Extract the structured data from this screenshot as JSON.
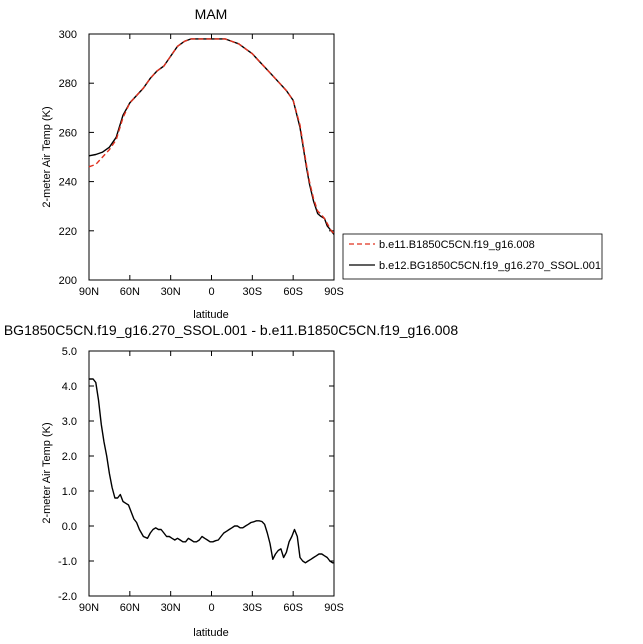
{
  "chart_data": [
    {
      "type": "line",
      "title": "MAM",
      "xlabel": "latitude",
      "ylabel": "2-meter Air Temp (K)",
      "xlim": [
        90,
        -90
      ],
      "ylim": [
        200,
        300
      ],
      "xticks": [
        90,
        60,
        30,
        0,
        -30,
        -60,
        -90
      ],
      "xticklabels": [
        "90N",
        "60N",
        "30N",
        "0",
        "30S",
        "60S",
        "90S"
      ],
      "yticks": [
        200,
        220,
        240,
        260,
        280,
        300
      ],
      "yticklabels": [
        "200",
        "220",
        "240",
        "260",
        "280",
        "300"
      ],
      "legend_position": "right",
      "series": [
        {
          "name": "b.e11.B1850C5CN.f19_g16.008",
          "color": "#e0301e",
          "dash": "dashed",
          "x": [
            90,
            85,
            80,
            75,
            70,
            65,
            60,
            55,
            50,
            45,
            40,
            35,
            30,
            25,
            20,
            15,
            10,
            5,
            0,
            -5,
            -10,
            -15,
            -20,
            -25,
            -30,
            -35,
            -40,
            -45,
            -50,
            -55,
            -60,
            -65,
            -70,
            -72,
            -75,
            -78,
            -80,
            -83,
            -85,
            -88,
            -90
          ],
          "y": [
            246,
            247,
            250,
            253,
            257,
            266,
            272,
            275,
            278,
            282,
            285,
            287,
            291,
            295,
            297,
            298,
            298,
            298,
            298,
            298,
            298,
            297,
            296,
            294,
            292,
            289,
            286,
            283,
            280,
            277,
            273,
            263,
            246,
            240,
            233,
            228,
            227,
            225,
            223,
            220,
            219
          ]
        },
        {
          "name": "b.e12.BG1850C5CN.f19_g16.270_SSOL.001",
          "color": "#000000",
          "dash": "solid",
          "x": [
            90,
            85,
            80,
            75,
            70,
            65,
            60,
            55,
            50,
            45,
            40,
            35,
            30,
            25,
            20,
            15,
            10,
            5,
            0,
            -5,
            -10,
            -15,
            -20,
            -25,
            -30,
            -35,
            -40,
            -45,
            -50,
            -55,
            -60,
            -65,
            -70,
            -72,
            -75,
            -78,
            -80,
            -83,
            -85,
            -88,
            -90
          ],
          "y": [
            250.5,
            251,
            252,
            254,
            258,
            267,
            272,
            275,
            278,
            282,
            285,
            287,
            291,
            295,
            297,
            298,
            298,
            298,
            298,
            298,
            298,
            297,
            296,
            294,
            292,
            289,
            286,
            283,
            280,
            277,
            273,
            262,
            245,
            239,
            232,
            227,
            226,
            225,
            222,
            220,
            218.5
          ]
        }
      ]
    },
    {
      "type": "line",
      "title": "BG1850C5CN.f19_g16.270_SSOL.001 - b.e11.B1850C5CN.f19_g16.008",
      "xlabel": "latitude",
      "ylabel": "2-meter Air Temp (K)",
      "xlim": [
        90,
        -90
      ],
      "ylim": [
        -2.0,
        5.0
      ],
      "xticks": [
        90,
        60,
        30,
        0,
        -30,
        -60,
        -90
      ],
      "xticklabels": [
        "90N",
        "60N",
        "30N",
        "0",
        "30S",
        "60S",
        "90S"
      ],
      "yticks": [
        -2,
        -1,
        0,
        1,
        2,
        3,
        4,
        5
      ],
      "yticklabels": [
        "-2.0",
        "-1.0",
        "0.0",
        "1.0",
        "2.0",
        "3.0",
        "4.0",
        "5.0"
      ],
      "series": [
        {
          "color": "#000000",
          "dash": "solid",
          "x": [
            90,
            87,
            85,
            83,
            81,
            79,
            77,
            75,
            73,
            71,
            69,
            67,
            65,
            63,
            61,
            59,
            57,
            55,
            53,
            50,
            47,
            45,
            43,
            41,
            39,
            37,
            35,
            33,
            31,
            29,
            27,
            25,
            23,
            21,
            19,
            17,
            15,
            13,
            11,
            9,
            7,
            5,
            3,
            1,
            -1,
            -3,
            -5,
            -7,
            -9,
            -11,
            -13,
            -15,
            -17,
            -19,
            -21,
            -23,
            -25,
            -27,
            -29,
            -31,
            -33,
            -35,
            -37,
            -39,
            -41,
            -43,
            -45,
            -47,
            -49,
            -51,
            -53,
            -55,
            -57,
            -59,
            -61,
            -63,
            -65,
            -67,
            -69,
            -71,
            -73,
            -75,
            -77,
            -79,
            -81,
            -83,
            -85,
            -87,
            -89,
            -90
          ],
          "y": [
            4.2,
            4.2,
            4.1,
            3.6,
            2.9,
            2.4,
            2.0,
            1.5,
            1.1,
            0.8,
            0.8,
            0.9,
            0.7,
            0.65,
            0.6,
            0.4,
            0.2,
            0.1,
            -0.1,
            -0.3,
            -0.35,
            -0.2,
            -0.1,
            -0.05,
            -0.1,
            -0.1,
            -0.2,
            -0.3,
            -0.3,
            -0.35,
            -0.4,
            -0.35,
            -0.4,
            -0.45,
            -0.45,
            -0.35,
            -0.4,
            -0.45,
            -0.45,
            -0.4,
            -0.3,
            -0.35,
            -0.4,
            -0.45,
            -0.45,
            -0.42,
            -0.4,
            -0.3,
            -0.2,
            -0.15,
            -0.1,
            -0.05,
            0.0,
            0.0,
            -0.05,
            -0.05,
            0.0,
            0.05,
            0.1,
            0.12,
            0.15,
            0.15,
            0.13,
            0.05,
            -0.2,
            -0.5,
            -0.95,
            -0.8,
            -0.7,
            -0.65,
            -0.9,
            -0.75,
            -0.45,
            -0.3,
            -0.1,
            -0.3,
            -0.9,
            -1.0,
            -1.05,
            -1.0,
            -0.95,
            -0.9,
            -0.85,
            -0.8,
            -0.8,
            -0.85,
            -0.9,
            -1.0,
            -1.05,
            -1.05
          ]
        }
      ]
    }
  ]
}
